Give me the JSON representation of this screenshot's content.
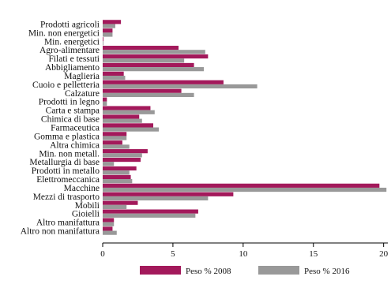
{
  "chart_data": {
    "type": "bar",
    "orientation": "horizontal",
    "categories": [
      "Prodotti agricoli",
      "Min. non energetici",
      "Min. energetici",
      "Agro-alimentare",
      "Filati e tessuti",
      "Abbigliamento",
      "Maglieria",
      "Cuoio e pelletteria",
      "Calzature",
      "Prodotti in legno",
      "Carta e stampa",
      "Chimica di base",
      "Farmaceutica",
      "Gomma e plastica",
      "Altra chimica",
      "Min. non metall.",
      "Metallurgia di base",
      "Prodotti in metallo",
      "Elettromeccanica",
      "Macchine",
      "Mezzi di trasporto",
      "Mobili",
      "Gioielli",
      "Altro manifattura",
      "Altro non manifattura"
    ],
    "series": [
      {
        "name": "Peso % 2008",
        "color": "#a3195b",
        "values": [
          1.3,
          0.7,
          0.05,
          5.4,
          7.5,
          6.5,
          1.5,
          8.6,
          5.6,
          0.3,
          3.4,
          2.6,
          3.6,
          1.7,
          1.4,
          3.2,
          2.7,
          2.4,
          2.0,
          19.7,
          9.3,
          2.5,
          6.8,
          0.8,
          0.7
        ]
      },
      {
        "name": "Peso % 2016",
        "color": "#999999",
        "values": [
          0.9,
          0.7,
          0.05,
          7.3,
          5.8,
          7.2,
          1.6,
          11.0,
          6.5,
          0.3,
          3.7,
          2.8,
          4.0,
          1.7,
          1.9,
          2.8,
          0.8,
          1.9,
          2.1,
          20.2,
          7.5,
          1.7,
          6.6,
          0.8,
          1.0
        ]
      }
    ],
    "x_ticks": [
      0,
      5,
      10,
      15,
      20
    ],
    "xlim": [
      0,
      20.3
    ],
    "xlabel": "",
    "ylabel": "",
    "title": "",
    "grid": false,
    "legend_position": "bottom"
  }
}
